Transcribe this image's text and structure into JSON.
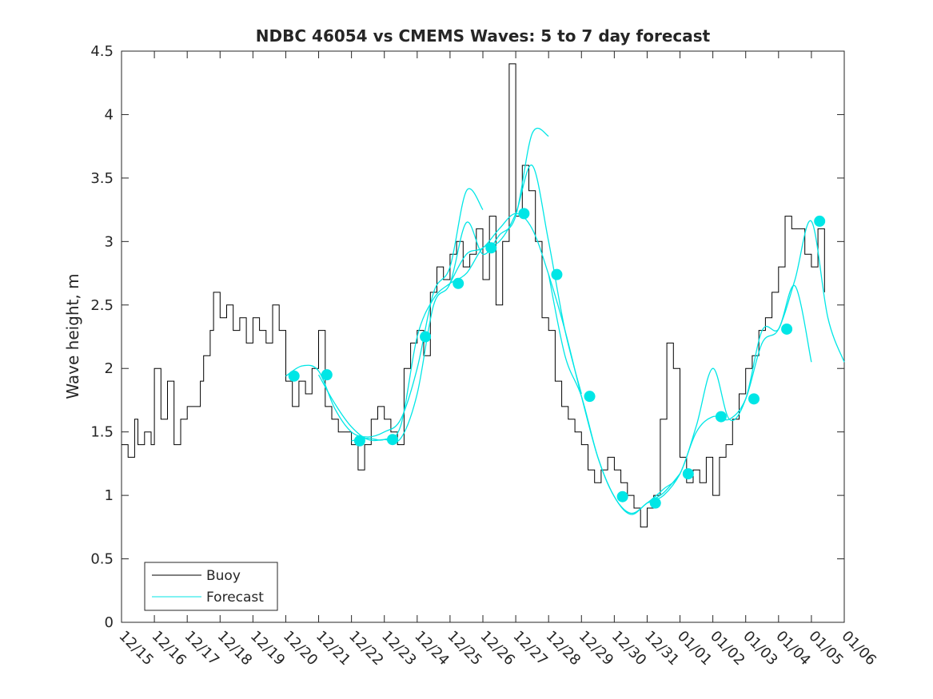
{
  "chart_data": {
    "type": "line",
    "title": "NDBC 46054 vs CMEMS Waves: 5 to 7 day forecast",
    "xlabel": "",
    "ylabel": "Wave height, m",
    "xlim": [
      0,
      22
    ],
    "ylim": [
      0,
      4.5
    ],
    "grid": false,
    "legend_position": "bottom-left",
    "x_ticks": [
      0,
      1,
      2,
      3,
      4,
      5,
      6,
      7,
      8,
      9,
      10,
      11,
      12,
      13,
      14,
      15,
      16,
      17,
      18,
      19,
      20,
      21,
      22
    ],
    "x_tick_labels": [
      "12/15",
      "12/16",
      "12/17",
      "12/18",
      "12/19",
      "12/20",
      "12/21",
      "12/22",
      "12/23",
      "12/24",
      "12/25",
      "12/26",
      "12/27",
      "12/28",
      "12/29",
      "12/30",
      "12/31",
      "01/01",
      "01/02",
      "01/03",
      "01/04",
      "01/05",
      "01/06"
    ],
    "y_ticks": [
      0,
      0.5,
      1,
      1.5,
      2,
      2.5,
      3,
      3.5,
      4,
      4.5
    ],
    "y_tick_labels": [
      "0",
      "0.5",
      "1",
      "1.5",
      "2",
      "2.5",
      "3",
      "3.5",
      "4",
      "4.5"
    ],
    "legend": [
      "Buoy",
      "Forecast"
    ],
    "colors": {
      "buoy": "#000000",
      "forecast": "#00e6e6",
      "axis": "#262626"
    },
    "buoy": {
      "name": "Buoy",
      "x": [
        0,
        0.2,
        0.4,
        0.5,
        0.7,
        0.9,
        1.0,
        1.2,
        1.4,
        1.6,
        1.8,
        2.0,
        2.2,
        2.4,
        2.5,
        2.7,
        2.8,
        3.0,
        3.2,
        3.4,
        3.6,
        3.8,
        4.0,
        4.2,
        4.4,
        4.6,
        4.8,
        5.0,
        5.2,
        5.4,
        5.6,
        5.8,
        6.0,
        6.2,
        6.4,
        6.6,
        6.8,
        7.0,
        7.2,
        7.4,
        7.6,
        7.8,
        8.0,
        8.2,
        8.4,
        8.6,
        8.8,
        9.0,
        9.2,
        9.4,
        9.6,
        9.8,
        10.0,
        10.2,
        10.4,
        10.6,
        10.8,
        11.0,
        11.2,
        11.4,
        11.6,
        11.8,
        12.0,
        12.2,
        12.4,
        12.6,
        12.8,
        13.0,
        13.2,
        13.4,
        13.6,
        13.8,
        14.0,
        14.2,
        14.4,
        14.6,
        14.8,
        15.0,
        15.2,
        15.4,
        15.6,
        15.8,
        16.0,
        16.2,
        16.4,
        16.6,
        16.8,
        17.0,
        17.2,
        17.4,
        17.6,
        17.8,
        18.0,
        18.2,
        18.4,
        18.6,
        18.8,
        19.0,
        19.2,
        19.4,
        19.6,
        19.8,
        20.0,
        20.2,
        20.4,
        20.6,
        20.8,
        21.0,
        21.2,
        21.4
      ],
      "y": [
        1.4,
        1.3,
        1.6,
        1.4,
        1.5,
        1.4,
        2.0,
        1.6,
        1.9,
        1.4,
        1.6,
        1.7,
        1.7,
        1.9,
        2.1,
        2.3,
        2.6,
        2.4,
        2.5,
        2.3,
        2.4,
        2.2,
        2.4,
        2.3,
        2.2,
        2.5,
        2.3,
        1.9,
        1.7,
        1.9,
        1.8,
        2.0,
        2.3,
        1.7,
        1.6,
        1.5,
        1.5,
        1.4,
        1.2,
        1.4,
        1.6,
        1.7,
        1.6,
        1.5,
        1.4,
        2.0,
        2.2,
        2.3,
        2.1,
        2.6,
        2.8,
        2.7,
        2.9,
        3.0,
        2.8,
        2.9,
        3.1,
        2.7,
        3.2,
        2.5,
        3.0,
        4.4,
        3.2,
        3.6,
        3.4,
        3.0,
        2.4,
        2.3,
        1.9,
        1.7,
        1.6,
        1.5,
        1.4,
        1.2,
        1.1,
        1.2,
        1.3,
        1.2,
        1.1,
        1.0,
        0.9,
        0.75,
        0.9,
        1.0,
        1.6,
        2.2,
        2.0,
        1.3,
        1.1,
        1.2,
        1.1,
        1.3,
        1.0,
        1.3,
        1.4,
        1.6,
        1.8,
        2.0,
        2.1,
        2.3,
        2.4,
        2.6,
        2.8,
        3.2,
        3.1,
        3.1,
        2.9,
        2.8,
        3.1,
        2.6
      ]
    },
    "forecast_runs": [
      {
        "x": [
          5.0,
          5.5,
          6.0,
          6.5,
          7.0,
          7.5,
          8.0,
          8.5,
          9.0,
          9.5,
          10.0,
          10.5,
          11.0
        ],
        "y": [
          1.94,
          2.02,
          1.98,
          1.68,
          1.5,
          1.46,
          1.5,
          1.6,
          2.0,
          2.6,
          2.8,
          3.4,
          3.25
        ]
      },
      {
        "x": [
          6.0,
          6.5,
          7.0,
          7.5,
          8.0,
          8.5,
          9.0,
          9.5,
          10.0,
          10.5,
          11.0,
          11.5,
          12.0,
          12.5,
          13.0
        ],
        "y": [
          1.95,
          1.72,
          1.54,
          1.44,
          1.44,
          1.45,
          1.8,
          2.5,
          2.67,
          3.15,
          2.9,
          3.05,
          3.2,
          3.85,
          3.83
        ]
      },
      {
        "x": [
          7.0,
          7.5,
          8.0,
          8.5,
          9.0,
          9.5,
          10.0,
          10.5,
          11.0,
          11.5,
          12.0,
          12.5,
          13.0,
          13.5,
          14.0
        ],
        "y": [
          1.43,
          1.45,
          1.44,
          1.55,
          2.25,
          2.55,
          2.67,
          2.75,
          2.95,
          3.0,
          3.22,
          3.6,
          3.0,
          2.3,
          1.8
        ]
      },
      {
        "x": [
          10.0,
          10.5,
          11.0,
          11.5,
          12.0,
          12.5,
          13.0,
          13.5,
          14.0,
          14.5,
          15.0,
          15.5,
          16.0,
          16.5,
          17.0
        ],
        "y": [
          2.67,
          2.9,
          2.95,
          3.1,
          3.22,
          3.1,
          2.74,
          2.3,
          1.78,
          1.3,
          0.99,
          0.85,
          0.94,
          1.02,
          1.17
        ]
      },
      {
        "x": [
          13.0,
          13.5,
          14.0,
          14.5,
          15.0,
          15.5,
          16.0,
          16.5,
          17.0,
          17.5,
          18.0,
          18.5,
          19.0,
          19.5,
          20.0,
          20.5,
          21.0
        ],
        "y": [
          2.74,
          2.1,
          1.78,
          1.3,
          0.99,
          0.86,
          0.94,
          1.05,
          1.17,
          1.55,
          2.0,
          1.6,
          1.76,
          2.3,
          2.31,
          2.65,
          2.05
        ]
      },
      {
        "x": [
          16.0,
          16.5,
          17.0,
          17.5,
          18.0,
          18.5,
          19.0,
          19.5,
          20.0,
          20.5,
          21.0,
          21.5,
          22.0
        ],
        "y": [
          0.94,
          1.0,
          1.17,
          1.5,
          1.62,
          1.6,
          1.76,
          2.2,
          2.31,
          2.7,
          3.16,
          2.4,
          2.05
        ]
      }
    ],
    "forecast_markers": {
      "x": [
        5.25,
        6.25,
        7.25,
        8.25,
        9.25,
        10.25,
        11.25,
        12.25,
        13.25,
        14.25,
        15.25,
        16.25,
        17.25,
        18.25,
        19.25,
        20.25,
        21.25
      ],
      "y": [
        1.94,
        1.95,
        1.43,
        1.44,
        2.25,
        2.67,
        2.95,
        3.22,
        2.74,
        1.78,
        0.99,
        0.94,
        1.17,
        1.62,
        1.76,
        2.31,
        3.16
      ]
    }
  }
}
